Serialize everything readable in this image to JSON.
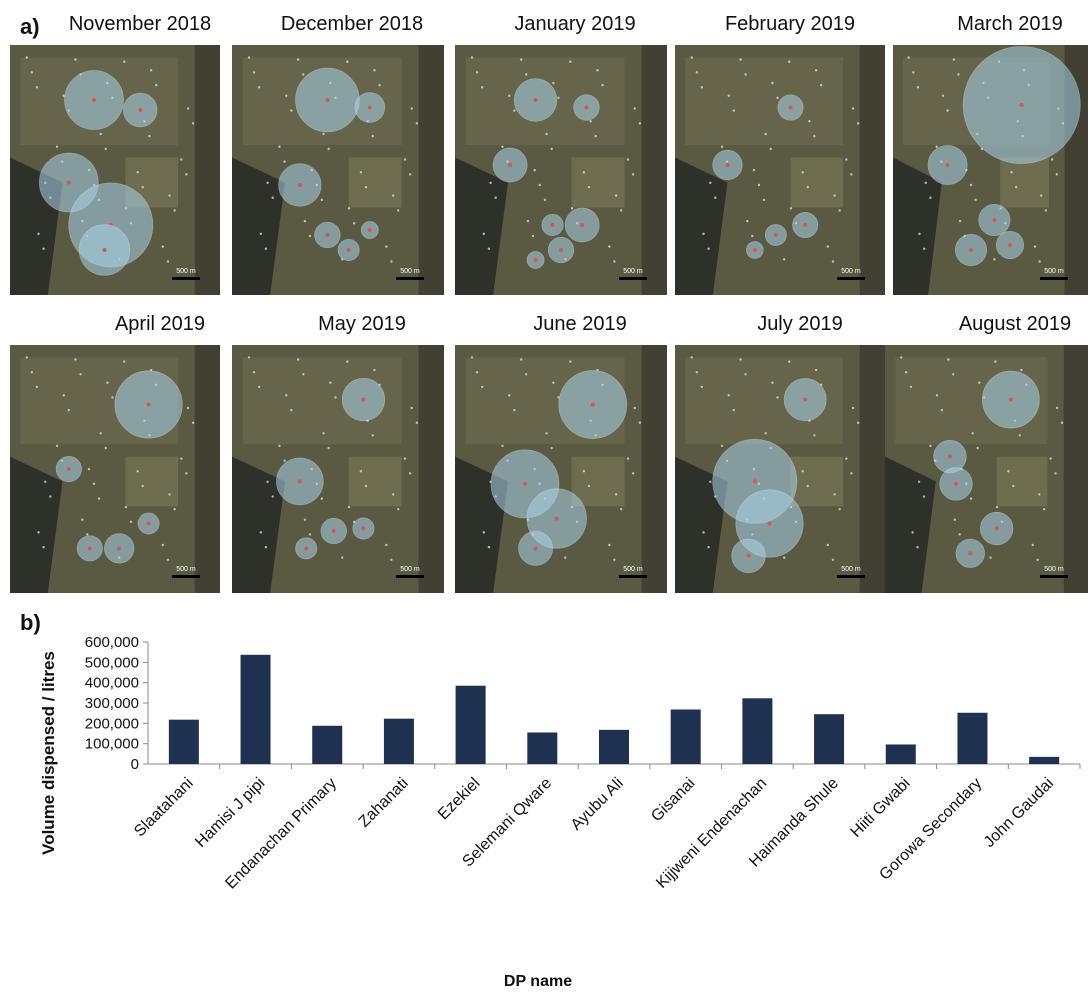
{
  "panel_a_label": "a)",
  "panel_b_label": "b)",
  "maps": [
    {
      "title": "November 2018"
    },
    {
      "title": "December 2018"
    },
    {
      "title": "January 2019"
    },
    {
      "title": "February 2019"
    },
    {
      "title": "March 2019"
    },
    {
      "title": "April 2019"
    },
    {
      "title": "May 2019"
    },
    {
      "title": "June 2019"
    },
    {
      "title": "July 2019"
    },
    {
      "title": "August 2019"
    }
  ],
  "scale_label": "500 m",
  "colors": {
    "bar": "#1f3150",
    "circle_fill": "#a9d3ea",
    "map_base": "#5a5a42",
    "map_dark": "#2e302a"
  },
  "chart_data": {
    "type": "bar",
    "categories": [
      "Slaatahani",
      "Hamisi J pipi",
      "Endanachan Primary",
      "Zahanati",
      "Ezekiel",
      "Selemani Qware",
      "Ayubu Ali",
      "Gisanai",
      "Kijjweni Endenachan",
      "Haimanda Shule",
      "Hiiti Gwabi",
      "Gorowa Secondary",
      "John Gaudai"
    ],
    "values": [
      218000,
      537000,
      188000,
      223000,
      385000,
      155000,
      168000,
      268000,
      323000,
      245000,
      96000,
      252000,
      35000
    ],
    "xlabel": "DP name",
    "ylabel": "Volume dispensed / litres",
    "ylim": [
      0,
      600000
    ],
    "yticks": [
      "0",
      "100,000",
      "200,000",
      "300,000",
      "400,000",
      "500,000",
      "600,000"
    ],
    "grid": false,
    "legend": "none"
  }
}
